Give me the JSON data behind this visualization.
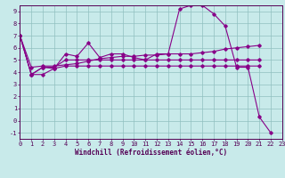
{
  "background_color": "#c8eaea",
  "grid_color": "#90c0c0",
  "line_color": "#880088",
  "xlim": [
    0,
    23
  ],
  "ylim": [
    -1.5,
    9.5
  ],
  "xticks": [
    0,
    1,
    2,
    3,
    4,
    5,
    6,
    7,
    8,
    9,
    10,
    11,
    12,
    13,
    14,
    15,
    16,
    17,
    18,
    19,
    20,
    21,
    22,
    23
  ],
  "yticks": [
    -1,
    0,
    1,
    2,
    3,
    4,
    5,
    6,
    7,
    8,
    9
  ],
  "xlabel": "Windchill (Refroidissement éolien,°C)",
  "series": [
    {
      "x": [
        0,
        1,
        2,
        3,
        4,
        5,
        6,
        7,
        8,
        9,
        10,
        11,
        12,
        13,
        14,
        15,
        16,
        17,
        18,
        19,
        20,
        21,
        22
      ],
      "y": [
        7.0,
        3.8,
        4.4,
        4.3,
        5.5,
        5.3,
        6.4,
        5.2,
        5.5,
        5.5,
        5.2,
        5.0,
        5.5,
        5.5,
        9.2,
        9.5,
        9.5,
        8.8,
        7.8,
        4.4,
        4.4,
        0.3,
        -1.0
      ]
    },
    {
      "x": [
        0,
        1,
        2,
        3,
        4,
        5,
        6,
        7,
        8,
        9,
        10,
        11,
        12,
        13,
        14,
        15,
        16,
        17,
        18,
        19,
        20,
        21
      ],
      "y": [
        7.0,
        4.4,
        4.5,
        4.5,
        4.6,
        4.7,
        4.9,
        5.1,
        5.2,
        5.3,
        5.3,
        5.4,
        5.4,
        5.5,
        5.5,
        5.5,
        5.6,
        5.7,
        5.9,
        6.0,
        6.1,
        6.2
      ]
    },
    {
      "x": [
        0,
        1,
        2,
        3,
        4,
        5,
        6,
        7,
        8,
        9,
        10,
        11,
        12,
        13,
        14,
        15,
        16,
        17,
        18,
        19,
        20,
        21
      ],
      "y": [
        7.0,
        3.8,
        3.8,
        4.3,
        4.5,
        4.5,
        4.5,
        4.5,
        4.5,
        4.5,
        4.5,
        4.5,
        4.5,
        4.5,
        4.5,
        4.5,
        4.5,
        4.5,
        4.5,
        4.5,
        4.5,
        4.5
      ]
    },
    {
      "x": [
        0,
        1,
        2,
        3,
        4,
        5,
        6,
        7,
        8,
        9,
        10,
        11,
        12,
        13,
        14,
        15,
        16,
        17,
        18,
        19,
        20,
        21
      ],
      "y": [
        7.0,
        3.8,
        4.4,
        4.4,
        5.0,
        5.0,
        5.0,
        5.0,
        5.0,
        5.0,
        5.0,
        5.0,
        5.0,
        5.0,
        5.0,
        5.0,
        5.0,
        5.0,
        5.0,
        5.0,
        5.0,
        5.0
      ]
    }
  ],
  "tick_fontsize": 5.0,
  "label_fontsize": 5.5,
  "font_color": "#550055",
  "marker_size": 1.8,
  "line_width": 0.8
}
